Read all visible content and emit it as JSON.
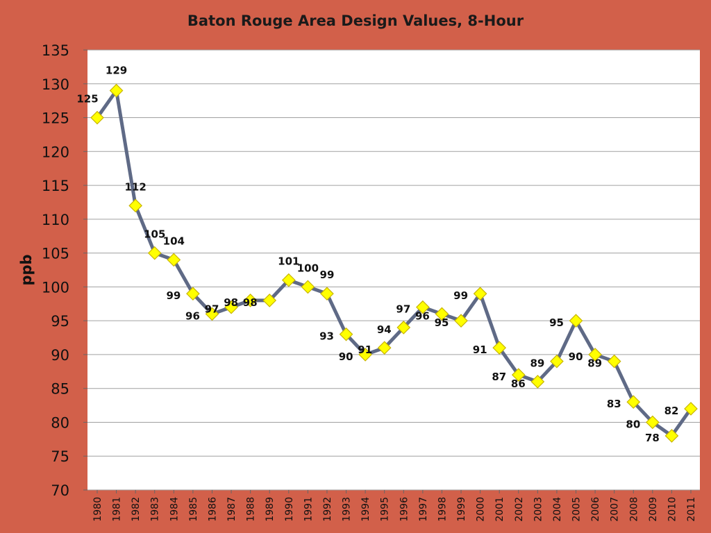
{
  "chart_data": {
    "type": "line",
    "title": "Baton Rouge Area Design Values, 8-Hour",
    "xlabel": "",
    "ylabel": "ppb",
    "ylim": [
      70,
      135
    ],
    "ytick_step": 5,
    "grid": true,
    "legend": "none",
    "colors": {
      "background": "#d2604a",
      "plot_background": "#ffffff",
      "line": "#5f6a86",
      "marker_fill": "#ffff00",
      "marker_stroke": "#c8b400",
      "grid": "#a0a0a0"
    },
    "x": [
      "1980",
      "1981",
      "1982",
      "1983",
      "1984",
      "1985",
      "1986",
      "1987",
      "1988",
      "1989",
      "1990",
      "1991",
      "1992",
      "1993",
      "1994",
      "1995",
      "1996",
      "1997",
      "1998",
      "1999",
      "2000",
      "2001",
      "2002",
      "2003",
      "2004",
      "2005",
      "2006",
      "2007",
      "2008",
      "2009",
      "2010",
      "2011"
    ],
    "series": [
      {
        "values": [
          125,
          129,
          112,
          105,
          104,
          99,
          96,
          97,
          98,
          98,
          101,
          100,
          99,
          93,
          90,
          91,
          94,
          97,
          96,
          95,
          99,
          91,
          87,
          86,
          89,
          95,
          90,
          89,
          83,
          80,
          78,
          82
        ]
      }
    ]
  }
}
